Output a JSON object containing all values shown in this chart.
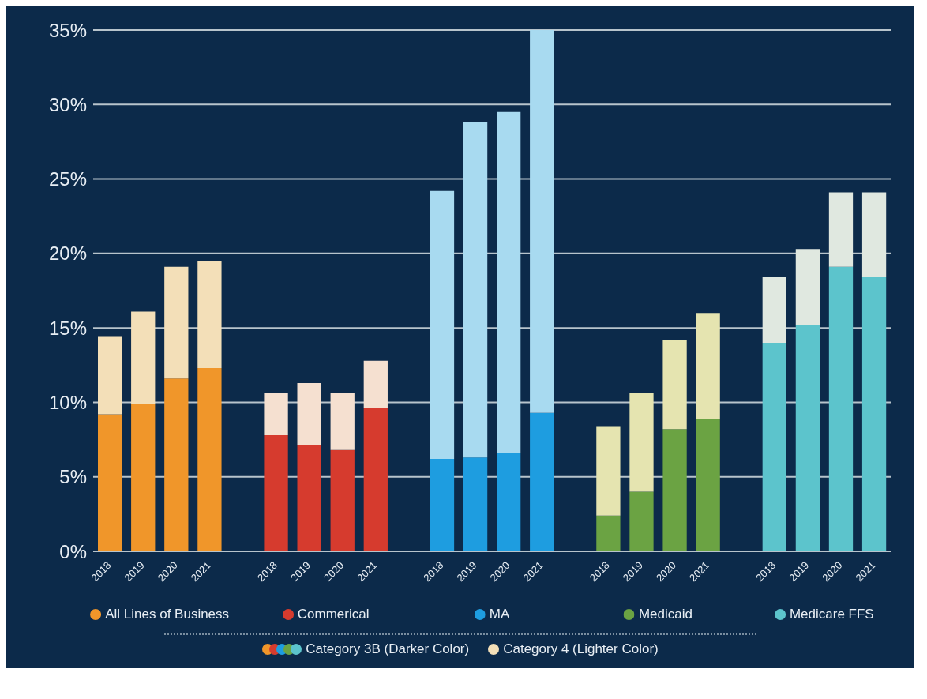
{
  "chart_data": {
    "type": "bar",
    "stacked": true,
    "categories": [
      "2018",
      "2019",
      "2020",
      "2021",
      null,
      "2018",
      "2019",
      "2020",
      "2021",
      null,
      "2018",
      "2019",
      "2020",
      "2021",
      null,
      "2018",
      "2019",
      "2020",
      "2021",
      null,
      "2018",
      "2019",
      "2020",
      "2021"
    ],
    "series": [
      {
        "name": "Category 3B (Darker Color)",
        "values": [
          9.2,
          9.9,
          11.6,
          12.3,
          null,
          7.8,
          7.1,
          6.8,
          9.6,
          null,
          6.2,
          6.3,
          6.6,
          9.3,
          null,
          2.4,
          4.0,
          8.2,
          8.9,
          null,
          14.0,
          15.2,
          19.1,
          18.4
        ],
        "colors": [
          "#f0962a",
          "#f0962a",
          "#f0962a",
          "#f0962a",
          null,
          "#d63b2e",
          "#d63b2e",
          "#d63b2e",
          "#d63b2e",
          null,
          "#1e9de0",
          "#1e9de0",
          "#1e9de0",
          "#1e9de0",
          null,
          "#6ba343",
          "#6ba343",
          "#6ba343",
          "#6ba343",
          null,
          "#5cc4cc",
          "#5cc4cc",
          "#5cc4cc",
          "#5cc4cc"
        ]
      },
      {
        "name": "Category 4 (Lighter Color)",
        "values": [
          5.2,
          6.2,
          7.5,
          7.2,
          null,
          2.8,
          4.2,
          3.8,
          3.2,
          null,
          18.0,
          22.5,
          22.9,
          25.7,
          null,
          6.0,
          6.6,
          6.0,
          7.1,
          null,
          4.4,
          5.1,
          5.0,
          5.7
        ],
        "colors": [
          "#f3dfb8",
          "#f3dfb8",
          "#f3dfb8",
          "#f3dfb8",
          null,
          "#f5e0d0",
          "#f5e0d0",
          "#f5e0d0",
          "#f5e0d0",
          null,
          "#a8daf0",
          "#a8daf0",
          "#a8daf0",
          "#a8daf0",
          null,
          "#e5e4b0",
          "#e5e4b0",
          "#e5e4b0",
          "#e5e4b0",
          null,
          "#e0e8e0",
          "#e0e8e0",
          "#e0e8e0",
          "#e0e8e0"
        ]
      }
    ],
    "ylim": [
      0,
      35
    ],
    "yticks": [
      {
        "value": 0,
        "label": "0%"
      },
      {
        "value": 5,
        "label": "5%"
      },
      {
        "value": 10,
        "label": "10%"
      },
      {
        "value": 15,
        "label": "15%"
      },
      {
        "value": 20,
        "label": "20%"
      },
      {
        "value": 25,
        "label": "25%"
      },
      {
        "value": 30,
        "label": "30%"
      },
      {
        "value": 35,
        "label": "35%"
      }
    ],
    "grid": "y",
    "legend": "bottom",
    "annotations": [
      "All Lines of Business",
      "Commerical",
      "MA",
      "Medicaid",
      "Medicare FFS"
    ]
  }
}
